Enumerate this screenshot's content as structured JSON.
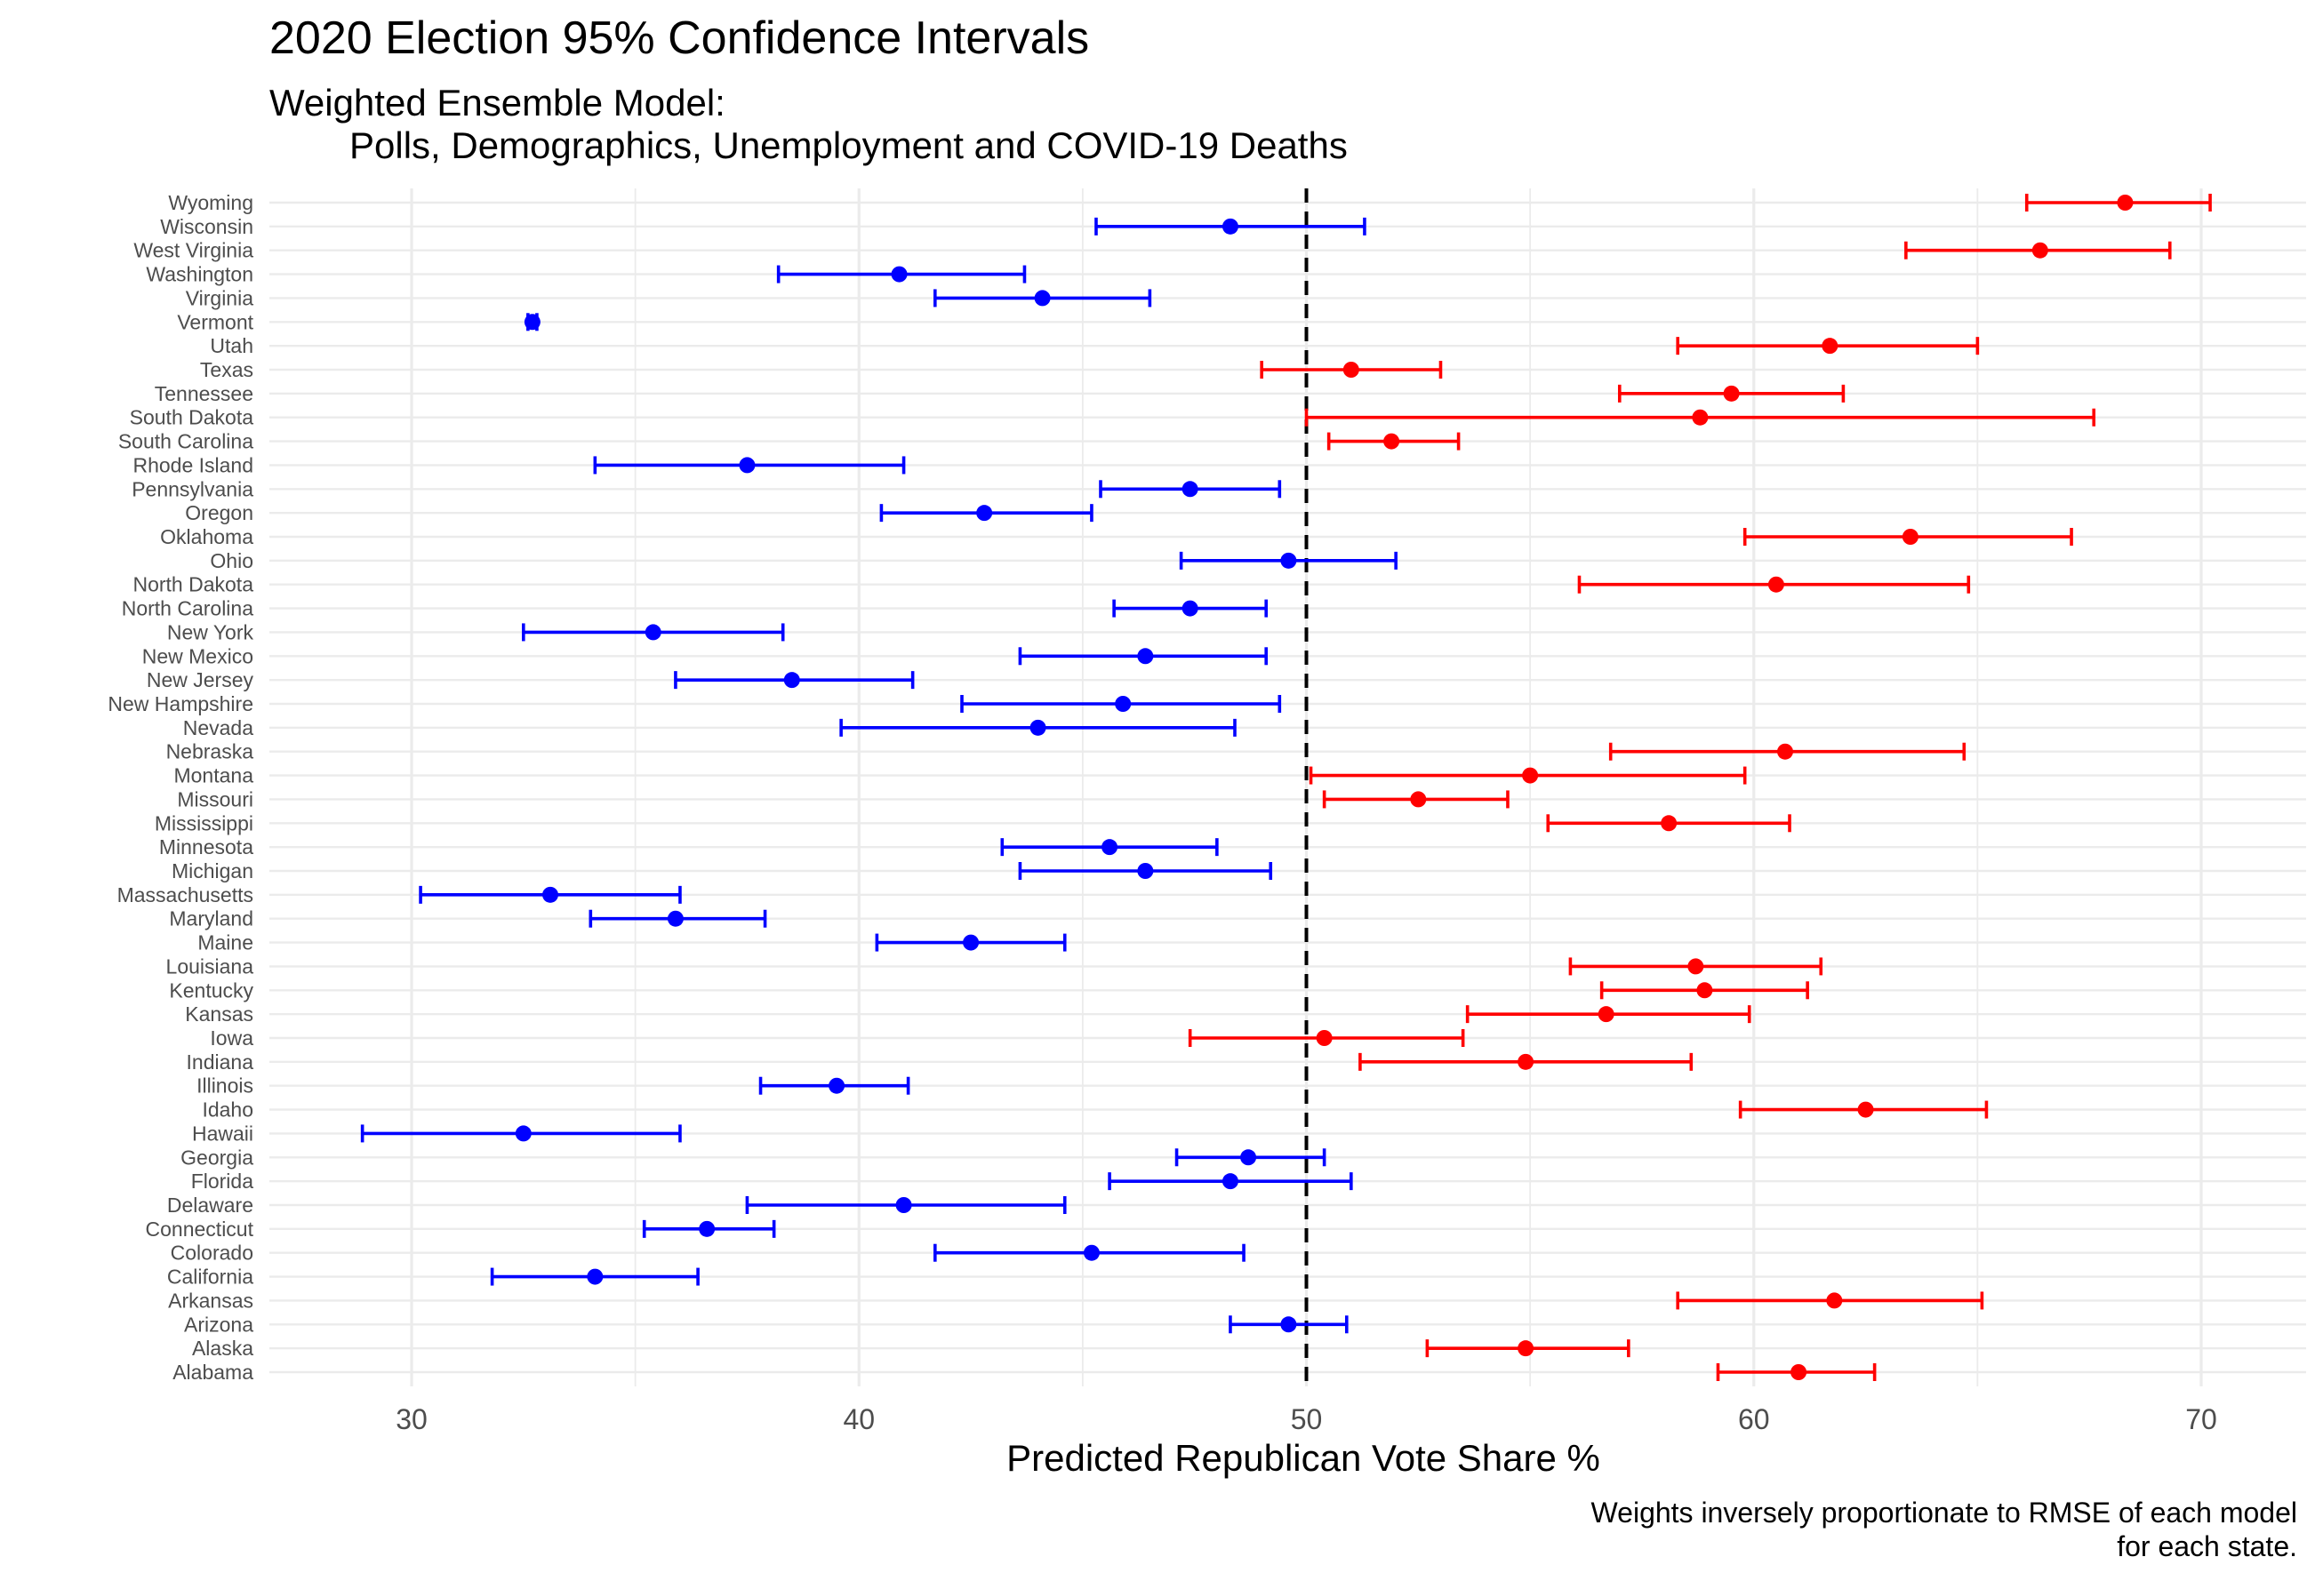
{
  "chart_data": {
    "type": "errorbar",
    "title": "2020 Election 95% Confidence Intervals",
    "subtitle": [
      "Weighted Ensemble Model:",
      "Polls, Demographics, Unemployment and COVID-19 Deaths"
    ],
    "xlabel": "Predicted Republican Vote Share %",
    "ylabel": "",
    "caption": [
      "Weights inversely proportionate to RMSE of each model",
      "for each state."
    ],
    "xlim": [
      27,
      72.5
    ],
    "xticks": [
      30,
      40,
      50,
      60,
      70
    ],
    "reference_line": 50,
    "grid": true,
    "colors": {
      "republican": "#ff0000",
      "democrat": "#0000ff",
      "grid": "#ebebeb",
      "reference": "#000000"
    },
    "points": [
      {
        "state": "Alabama",
        "estimate": 61.0,
        "lower": 59.2,
        "upper": 62.7,
        "party": "R"
      },
      {
        "state": "Alaska",
        "estimate": 54.9,
        "lower": 52.7,
        "upper": 57.2,
        "party": "R"
      },
      {
        "state": "Arizona",
        "estimate": 49.6,
        "lower": 48.3,
        "upper": 50.9,
        "party": "D"
      },
      {
        "state": "Arkansas",
        "estimate": 61.8,
        "lower": 58.3,
        "upper": 65.1,
        "party": "R"
      },
      {
        "state": "California",
        "estimate": 34.1,
        "lower": 31.8,
        "upper": 36.4,
        "party": "D"
      },
      {
        "state": "Colorado",
        "estimate": 45.2,
        "lower": 41.7,
        "upper": 48.6,
        "party": "D"
      },
      {
        "state": "Connecticut",
        "estimate": 36.6,
        "lower": 35.2,
        "upper": 38.1,
        "party": "D"
      },
      {
        "state": "Delaware",
        "estimate": 41.0,
        "lower": 37.5,
        "upper": 44.6,
        "party": "D"
      },
      {
        "state": "Florida",
        "estimate": 48.3,
        "lower": 45.6,
        "upper": 51.0,
        "party": "D"
      },
      {
        "state": "Georgia",
        "estimate": 48.7,
        "lower": 47.1,
        "upper": 50.4,
        "party": "D"
      },
      {
        "state": "Hawaii",
        "estimate": 32.5,
        "lower": 28.9,
        "upper": 36.0,
        "party": "D"
      },
      {
        "state": "Idaho",
        "estimate": 62.5,
        "lower": 59.7,
        "upper": 65.2,
        "party": "R"
      },
      {
        "state": "Illinois",
        "estimate": 39.5,
        "lower": 37.8,
        "upper": 41.1,
        "party": "D"
      },
      {
        "state": "Indiana",
        "estimate": 54.9,
        "lower": 51.2,
        "upper": 58.6,
        "party": "R"
      },
      {
        "state": "Iowa",
        "estimate": 50.4,
        "lower": 47.4,
        "upper": 53.5,
        "party": "R"
      },
      {
        "state": "Kansas",
        "estimate": 56.7,
        "lower": 53.6,
        "upper": 59.9,
        "party": "R"
      },
      {
        "state": "Kentucky",
        "estimate": 58.9,
        "lower": 56.6,
        "upper": 61.2,
        "party": "R"
      },
      {
        "state": "Louisiana",
        "estimate": 58.7,
        "lower": 55.9,
        "upper": 61.5,
        "party": "R"
      },
      {
        "state": "Maine",
        "estimate": 42.5,
        "lower": 40.4,
        "upper": 44.6,
        "party": "D"
      },
      {
        "state": "Maryland",
        "estimate": 35.9,
        "lower": 34.0,
        "upper": 37.9,
        "party": "D"
      },
      {
        "state": "Massachusetts",
        "estimate": 33.1,
        "lower": 30.2,
        "upper": 36.0,
        "party": "D"
      },
      {
        "state": "Michigan",
        "estimate": 46.4,
        "lower": 43.6,
        "upper": 49.2,
        "party": "D"
      },
      {
        "state": "Minnesota",
        "estimate": 45.6,
        "lower": 43.2,
        "upper": 48.0,
        "party": "D"
      },
      {
        "state": "Mississippi",
        "estimate": 58.1,
        "lower": 55.4,
        "upper": 60.8,
        "party": "R"
      },
      {
        "state": "Missouri",
        "estimate": 52.5,
        "lower": 50.4,
        "upper": 54.5,
        "party": "R"
      },
      {
        "state": "Montana",
        "estimate": 55.0,
        "lower": 50.1,
        "upper": 59.8,
        "party": "R"
      },
      {
        "state": "Nebraska",
        "estimate": 60.7,
        "lower": 56.8,
        "upper": 64.7,
        "party": "R"
      },
      {
        "state": "Nevada",
        "estimate": 44.0,
        "lower": 39.6,
        "upper": 48.4,
        "party": "D"
      },
      {
        "state": "New Hampshire",
        "estimate": 45.9,
        "lower": 42.3,
        "upper": 49.4,
        "party": "D"
      },
      {
        "state": "New Jersey",
        "estimate": 38.5,
        "lower": 35.9,
        "upper": 41.2,
        "party": "D"
      },
      {
        "state": "New Mexico",
        "estimate": 46.4,
        "lower": 43.6,
        "upper": 49.1,
        "party": "D"
      },
      {
        "state": "New York",
        "estimate": 35.4,
        "lower": 32.5,
        "upper": 38.3,
        "party": "D"
      },
      {
        "state": "North Carolina",
        "estimate": 47.4,
        "lower": 45.7,
        "upper": 49.1,
        "party": "D"
      },
      {
        "state": "North Dakota",
        "estimate": 60.5,
        "lower": 56.1,
        "upper": 64.8,
        "party": "R"
      },
      {
        "state": "Ohio",
        "estimate": 49.6,
        "lower": 47.2,
        "upper": 52.0,
        "party": "D"
      },
      {
        "state": "Oklahoma",
        "estimate": 63.5,
        "lower": 59.8,
        "upper": 67.1,
        "party": "R"
      },
      {
        "state": "Oregon",
        "estimate": 42.8,
        "lower": 40.5,
        "upper": 45.2,
        "party": "D"
      },
      {
        "state": "Pennsylvania",
        "estimate": 47.4,
        "lower": 45.4,
        "upper": 49.4,
        "party": "D"
      },
      {
        "state": "Rhode Island",
        "estimate": 37.5,
        "lower": 34.1,
        "upper": 41.0,
        "party": "D"
      },
      {
        "state": "South Carolina",
        "estimate": 51.9,
        "lower": 50.5,
        "upper": 53.4,
        "party": "R"
      },
      {
        "state": "South Dakota",
        "estimate": 58.8,
        "lower": 50.0,
        "upper": 67.6,
        "party": "R"
      },
      {
        "state": "Tennessee",
        "estimate": 59.5,
        "lower": 57.0,
        "upper": 62.0,
        "party": "R"
      },
      {
        "state": "Texas",
        "estimate": 51.0,
        "lower": 49.0,
        "upper": 53.0,
        "party": "R"
      },
      {
        "state": "Utah",
        "estimate": 61.7,
        "lower": 58.3,
        "upper": 65.0,
        "party": "R"
      },
      {
        "state": "Vermont",
        "estimate": 32.7,
        "lower": 32.6,
        "upper": 32.8,
        "party": "D"
      },
      {
        "state": "Virginia",
        "estimate": 44.1,
        "lower": 41.7,
        "upper": 46.5,
        "party": "D"
      },
      {
        "state": "Washington",
        "estimate": 40.9,
        "lower": 38.2,
        "upper": 43.7,
        "party": "D"
      },
      {
        "state": "West Virginia",
        "estimate": 66.4,
        "lower": 63.4,
        "upper": 69.3,
        "party": "R"
      },
      {
        "state": "Wisconsin",
        "estimate": 48.3,
        "lower": 45.3,
        "upper": 51.3,
        "party": "D"
      },
      {
        "state": "Wyoming",
        "estimate": 68.3,
        "lower": 66.1,
        "upper": 70.2,
        "party": "R"
      }
    ]
  }
}
